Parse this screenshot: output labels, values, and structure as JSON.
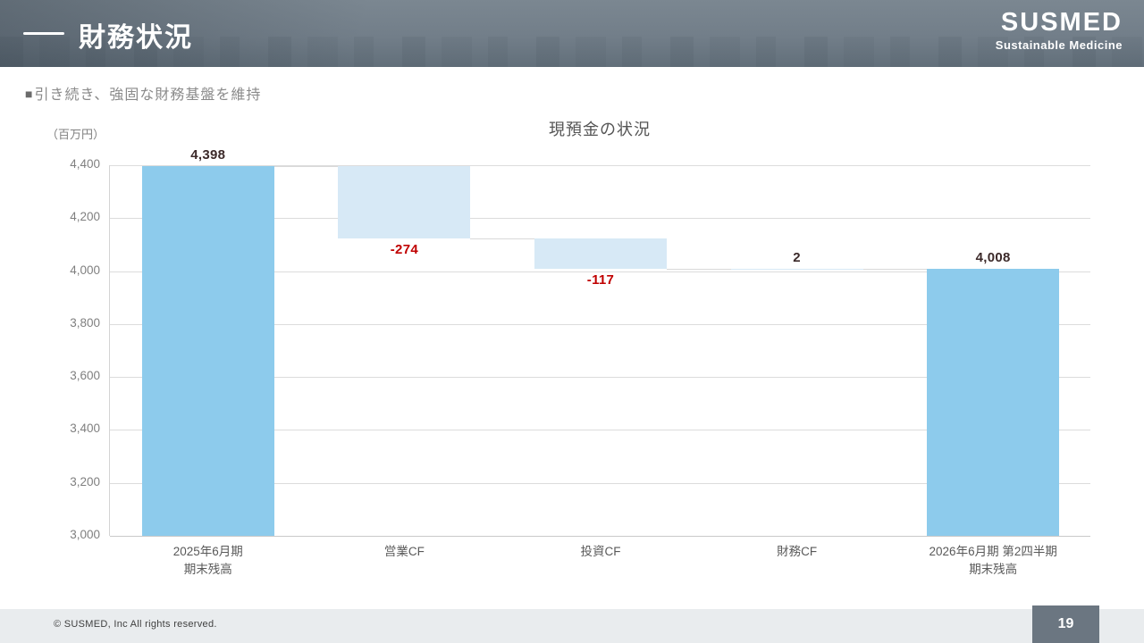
{
  "header": {
    "title": "財務状況",
    "logo": "SUSMED",
    "logo_tagline": "Sustainable Medicine"
  },
  "subtitle": {
    "bullet": "■",
    "text": "引き続き、強固な財務基盤を維持"
  },
  "chart_data": {
    "type": "bar",
    "subtype": "waterfall",
    "title": "現預金の状況",
    "unit_label": "（百万円）",
    "ylim": [
      3000,
      4400
    ],
    "ytick_step": 200,
    "yticks": [
      "4,400",
      "4,200",
      "4,000",
      "3,800",
      "3,600",
      "3,400",
      "3,200",
      "3,000"
    ],
    "grid": true,
    "bars": [
      {
        "label_lines": [
          "2025年6月期",
          "期末残高"
        ],
        "kind": "total",
        "value": 4398,
        "display": "4,398"
      },
      {
        "label_lines": [
          "営業CF"
        ],
        "kind": "delta",
        "value": -274,
        "display": "-274"
      },
      {
        "label_lines": [
          "投資CF"
        ],
        "kind": "delta",
        "value": -117,
        "display": "-117"
      },
      {
        "label_lines": [
          "財務CF"
        ],
        "kind": "delta",
        "value": 2,
        "display": "2"
      },
      {
        "label_lines": [
          "2026年6月期 第2四半期",
          "期末残高"
        ],
        "kind": "total",
        "value": 4008,
        "display": "4,008"
      }
    ],
    "colors": {
      "total_bar": "#8dcbec",
      "delta_bar": "#d7e9f6",
      "positive_label": "#3c2a2a",
      "negative_label": "#c00000"
    }
  },
  "footer": {
    "copyright": "© SUSMED, Inc All rights reserved.",
    "page_number": "19"
  }
}
